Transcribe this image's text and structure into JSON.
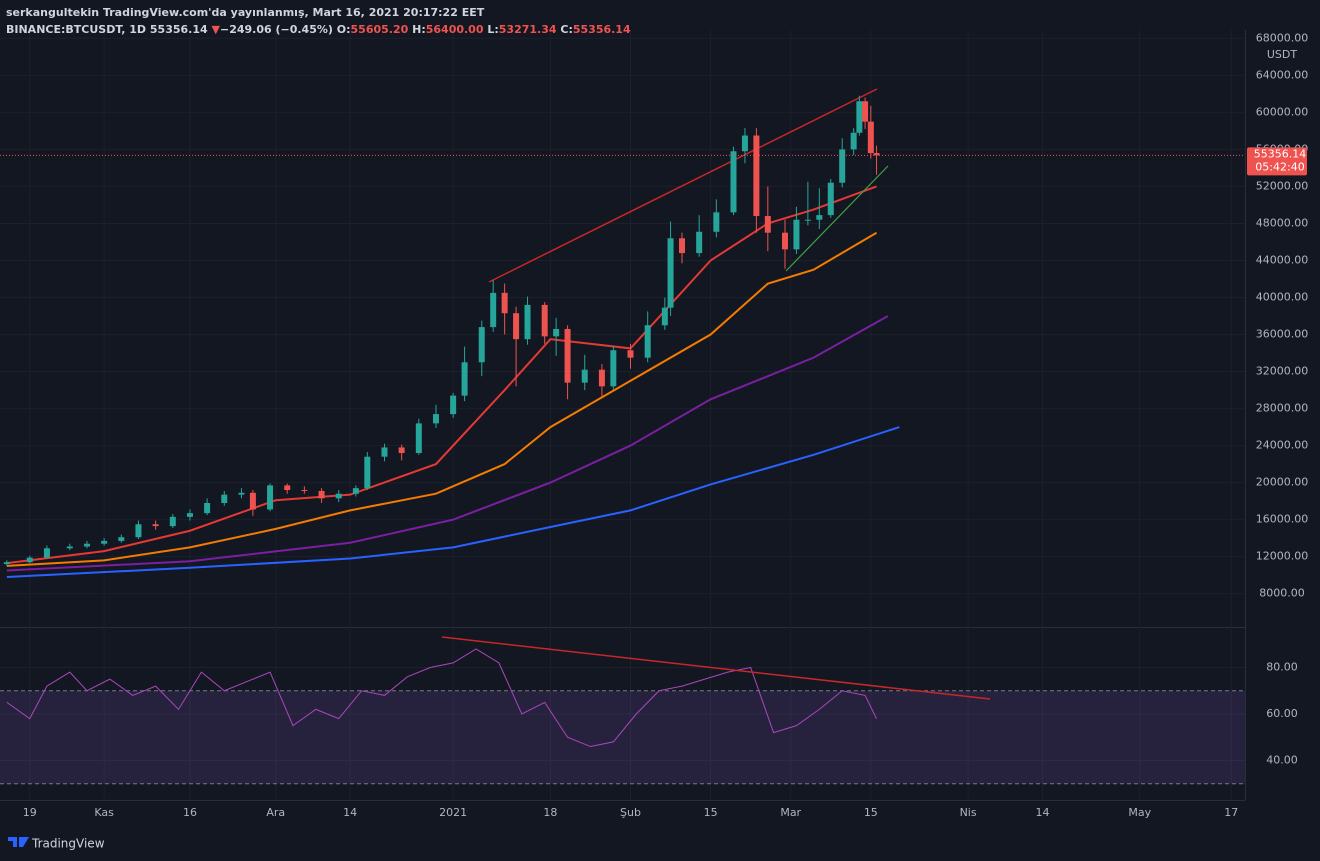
{
  "chart_data": {
    "type": "candlestick",
    "header": {
      "publisher": "serkangultekin TradingView.com'da yayınlanmış, Mart 16, 2021 20:17:22 EET",
      "symbol": "BINANCE:BTCUSDT, 1D",
      "last": "55356.14",
      "arrow": "▼",
      "change": "−249.06 (−0.45%)",
      "o_label": "O:",
      "o": "55605.20",
      "h_label": "H:",
      "h": "56400.00",
      "l_label": "L:",
      "l": "53271.34",
      "c_label": "C:",
      "c": "55356.14"
    },
    "currency": "USDT",
    "price_label": "55356.14",
    "countdown": "05:42:40",
    "brand": "TradingView",
    "xlim": [
      -5.2,
      212.4
    ],
    "xticks": [
      {
        "value": 0,
        "label": "19"
      },
      {
        "value": 13,
        "label": "Kas"
      },
      {
        "value": 28,
        "label": "16"
      },
      {
        "value": 43,
        "label": "Ara"
      },
      {
        "value": 56,
        "label": "14"
      },
      {
        "value": 74,
        "label": "2021"
      },
      {
        "value": 91,
        "label": "18"
      },
      {
        "value": 105,
        "label": "Şub"
      },
      {
        "value": 119,
        "label": "15"
      },
      {
        "value": 133,
        "label": "Mar"
      },
      {
        "value": 147,
        "label": "15"
      },
      {
        "value": 164,
        "label": "Nis"
      },
      {
        "value": 177,
        "label": "14"
      },
      {
        "value": 194,
        "label": "May"
      },
      {
        "value": 210,
        "label": "17"
      }
    ],
    "ylim": [
      4400,
      68900
    ],
    "yticks": [
      {
        "value": 8000,
        "label": "8000.00"
      },
      {
        "value": 12000,
        "label": "12000.00"
      },
      {
        "value": 16000,
        "label": "16000.00"
      },
      {
        "value": 20000,
        "label": "20000.00"
      },
      {
        "value": 24000,
        "label": "24000.00"
      },
      {
        "value": 28000,
        "label": "28000.00"
      },
      {
        "value": 32000,
        "label": "32000.00"
      },
      {
        "value": 36000,
        "label": "36000.00"
      },
      {
        "value": 40000,
        "label": "40000.00"
      },
      {
        "value": 44000,
        "label": "44000.00"
      },
      {
        "value": 48000,
        "label": "48000.00"
      },
      {
        "value": 52000,
        "label": "52000.00"
      },
      {
        "value": 56000,
        "label": "56000.00"
      },
      {
        "value": 60000,
        "label": "60000.00"
      },
      {
        "value": 64000,
        "label": "64000.00"
      },
      {
        "value": 68000,
        "label": "68000.00"
      }
    ],
    "up_color": "#26a69a",
    "down_color": "#ef5350",
    "x": [
      -4,
      0,
      3,
      7,
      10,
      13,
      16,
      19,
      22,
      25,
      28,
      31,
      34,
      37,
      39,
      42,
      45,
      48,
      51,
      54,
      57,
      59,
      62,
      65,
      68,
      71,
      74,
      76,
      79,
      81,
      83,
      85,
      87,
      90,
      92,
      94,
      97,
      100,
      102,
      105,
      108,
      111,
      112,
      114,
      117,
      120,
      123,
      125,
      127,
      129,
      132,
      134,
      136,
      138,
      140,
      142,
      144,
      145,
      146,
      147,
      148
    ],
    "open": [
      11200,
      11400,
      11900,
      12900,
      13100,
      13400,
      13700,
      14100,
      15500,
      15300,
      16300,
      16700,
      17800,
      18700,
      18900,
      17100,
      19700,
      19200,
      19100,
      18300,
      18800,
      19400,
      22800,
      23800,
      23200,
      26400,
      27400,
      29400,
      33000,
      36800,
      40500,
      38300,
      35500,
      39200,
      35800,
      36600,
      30800,
      32200,
      30400,
      34300,
      33500,
      37000,
      38900,
      46400,
      44800,
      47100,
      49200,
      55800,
      57500,
      48800,
      47000,
      45200,
      48400,
      48400,
      48900,
      52400,
      56000,
      57800,
      61200,
      59000,
      55605.2
    ],
    "high": [
      11600,
      12100,
      13200,
      13400,
      13700,
      14000,
      14400,
      15900,
      15900,
      16600,
      17100,
      18300,
      19100,
      19400,
      19200,
      19900,
      19900,
      19600,
      19400,
      19200,
      19700,
      23300,
      24200,
      24100,
      26900,
      28400,
      29700,
      34700,
      37500,
      41900,
      41500,
      39000,
      40100,
      39500,
      37800,
      37000,
      33800,
      32800,
      34800,
      35000,
      38500,
      40000,
      48200,
      47000,
      48900,
      50600,
      56300,
      58300,
      58300,
      52000,
      48400,
      49800,
      52500,
      51800,
      52800,
      57200,
      58300,
      61800,
      61600,
      60700,
      56400
    ],
    "low": [
      11000,
      11300,
      11800,
      12700,
      12900,
      13200,
      13500,
      13900,
      14900,
      15100,
      15900,
      16500,
      17500,
      18300,
      16400,
      16900,
      18800,
      18800,
      17800,
      17900,
      18500,
      19200,
      22300,
      22400,
      23000,
      25900,
      27000,
      28800,
      31500,
      36300,
      36000,
      30400,
      34900,
      35000,
      33700,
      29000,
      30000,
      29300,
      30000,
      32300,
      33000,
      36500,
      38000,
      43700,
      44400,
      46500,
      48900,
      54500,
      47000,
      45000,
      43100,
      44700,
      47800,
      47400,
      48600,
      51900,
      55400,
      57500,
      58200,
      55000,
      53271.34
    ],
    "close": [
      11400,
      11900,
      12900,
      13100,
      13400,
      13700,
      14100,
      15500,
      15300,
      16300,
      16700,
      17800,
      18700,
      18900,
      17100,
      19700,
      19200,
      19100,
      18300,
      18800,
      19400,
      22800,
      23800,
      23200,
      26400,
      27400,
      29400,
      33000,
      36800,
      40500,
      38300,
      35500,
      39200,
      35800,
      36600,
      30800,
      32200,
      30400,
      34300,
      33500,
      37000,
      38900,
      46400,
      44800,
      47100,
      49200,
      55800,
      57500,
      48800,
      47000,
      45200,
      48400,
      48400,
      48900,
      52400,
      56000,
      57800,
      61200,
      59000,
      55600,
      55356.14
    ],
    "series": [
      {
        "color": "#2962ff",
        "x": [
          -4,
          28,
          56,
          74,
          91,
          105,
          119,
          137,
          152
        ],
        "values": [
          9800,
          10800,
          11800,
          13000,
          15200,
          17000,
          19800,
          23000,
          26000
        ]
      },
      {
        "color": "#7b1fa2",
        "x": [
          -4,
          28,
          56,
          74,
          91,
          105,
          119,
          137,
          150
        ],
        "values": [
          10500,
          11500,
          13500,
          16000,
          20000,
          24000,
          29000,
          33500,
          38000
        ]
      },
      {
        "color": "#f57c00",
        "x": [
          -4,
          13,
          28,
          43,
          56,
          71,
          83,
          91,
          105,
          119,
          129,
          137,
          148
        ],
        "values": [
          11000,
          11600,
          13000,
          15000,
          17000,
          18800,
          22000,
          26000,
          31000,
          36000,
          41500,
          43000,
          47000
        ]
      },
      {
        "color": "#e53935",
        "x": [
          -4,
          13,
          28,
          43,
          56,
          71,
          83,
          91,
          105,
          119,
          129,
          137,
          148
        ],
        "values": [
          11300,
          12600,
          14800,
          18100,
          18700,
          22000,
          30000,
          35500,
          34500,
          44000,
          48000,
          49500,
          52000
        ]
      }
    ],
    "rsi": {
      "color": "#ab47bc",
      "ylim": [
        23,
        97
      ],
      "yticks": [
        {
          "value": 40,
          "label": "40.00"
        },
        {
          "value": 60,
          "label": "60.00"
        },
        {
          "value": 80,
          "label": "80.00"
        }
      ],
      "levels": [
        30,
        70
      ],
      "x": [
        -4,
        0,
        3,
        7,
        10,
        14,
        18,
        22,
        26,
        30,
        34,
        38,
        42,
        46,
        50,
        54,
        58,
        62,
        66,
        70,
        74,
        78,
        82,
        86,
        90,
        94,
        98,
        102,
        106,
        110,
        114,
        118,
        122,
        126,
        130,
        134,
        138,
        142,
        146,
        148
      ],
      "values": [
        65,
        58,
        72,
        78,
        70,
        75,
        68,
        72,
        62,
        78,
        70,
        74,
        78,
        55,
        62,
        58,
        70,
        68,
        76,
        80,
        82,
        88,
        82,
        60,
        65,
        50,
        46,
        48,
        60,
        70,
        72,
        75,
        78,
        80,
        52,
        55,
        62,
        70,
        68,
        58
      ]
    }
  }
}
